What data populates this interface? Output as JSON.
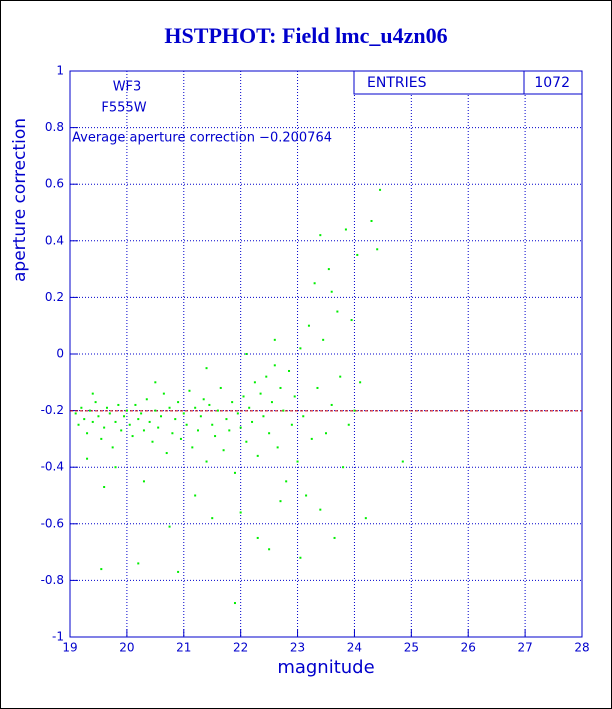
{
  "chart_data": {
    "type": "scatter",
    "title": "HSTPHOT: Field lmc_u4zn06",
    "xlabel": "magnitude",
    "ylabel": "aperture correction",
    "annotations": [
      "WF3",
      "F555W"
    ],
    "average": {
      "value": -0.200764,
      "label": "Average aperture correction −0.200764",
      "color": "#cc0000"
    },
    "stats": {
      "label": "ENTRIES",
      "value": 1072
    },
    "color": "#00ee00",
    "grid": true,
    "xlim": [
      19,
      28
    ],
    "ylim": [
      -1,
      1
    ],
    "xticks": [
      19,
      20,
      21,
      22,
      23,
      24,
      25,
      26,
      27,
      28
    ],
    "yticks": [
      -1,
      -0.8,
      -0.6,
      -0.4,
      -0.2,
      0,
      0.2,
      0.4,
      0.6,
      0.8,
      1
    ],
    "x": [
      19.1,
      19.15,
      19.2,
      19.25,
      19.3,
      19.35,
      19.4,
      19.45,
      19.5,
      19.55,
      19.6,
      19.65,
      19.7,
      19.75,
      19.8,
      19.85,
      19.9,
      19.95,
      20.0,
      20.05,
      20.1,
      20.15,
      20.2,
      20.25,
      20.3,
      20.35,
      20.4,
      20.45,
      20.5,
      20.55,
      20.6,
      20.65,
      20.7,
      20.75,
      20.8,
      20.85,
      20.9,
      20.95,
      21.0,
      21.05,
      21.1,
      21.15,
      21.2,
      21.25,
      21.3,
      21.35,
      21.4,
      21.45,
      21.5,
      21.55,
      21.6,
      21.65,
      21.7,
      21.75,
      21.8,
      21.85,
      21.9,
      21.95,
      22.0,
      22.05,
      22.1,
      22.15,
      22.2,
      22.25,
      22.3,
      22.35,
      22.4,
      22.45,
      22.5,
      22.55,
      22.6,
      22.65,
      22.7,
      22.75,
      22.8,
      22.85,
      22.9,
      22.95,
      23.0,
      23.05,
      23.1,
      23.15,
      23.2,
      23.25,
      23.3,
      23.35,
      23.4,
      23.45,
      23.5,
      23.55,
      23.6,
      23.65,
      23.7,
      23.75,
      23.8,
      23.85,
      23.9,
      23.95,
      24.05,
      24.1,
      24.2,
      24.3,
      24.4,
      24.45,
      24.85,
      19.55,
      19.6,
      20.2,
      20.75,
      20.9,
      21.5,
      21.9,
      22.3,
      22.5,
      22.0,
      21.2,
      20.3,
      19.8,
      22.7,
      23.05,
      23.4,
      22.6,
      22.1,
      21.4,
      20.5,
      19.4,
      19.3,
      23.6,
      24.0
    ],
    "values": [
      -0.21,
      -0.25,
      -0.19,
      -0.23,
      -0.28,
      -0.2,
      -0.24,
      -0.17,
      -0.22,
      -0.3,
      -0.26,
      -0.19,
      -0.21,
      -0.33,
      -0.24,
      -0.18,
      -0.27,
      -0.22,
      -0.2,
      -0.25,
      -0.29,
      -0.18,
      -0.23,
      -0.21,
      -0.27,
      -0.16,
      -0.24,
      -0.31,
      -0.2,
      -0.26,
      -0.22,
      -0.14,
      -0.35,
      -0.19,
      -0.28,
      -0.23,
      -0.17,
      -0.3,
      -0.21,
      -0.25,
      -0.13,
      -0.33,
      -0.19,
      -0.27,
      -0.22,
      -0.16,
      -0.38,
      -0.18,
      -0.25,
      -0.29,
      -0.2,
      -0.12,
      -0.34,
      -0.23,
      -0.27,
      -0.17,
      -0.42,
      -0.21,
      -0.26,
      -0.15,
      -0.31,
      -0.19,
      -0.24,
      -0.1,
      -0.36,
      -0.14,
      -0.22,
      -0.08,
      -0.28,
      -0.17,
      -0.04,
      -0.33,
      -0.12,
      -0.2,
      -0.45,
      -0.06,
      -0.25,
      -0.15,
      -0.38,
      0.02,
      -0.22,
      -0.5,
      0.1,
      -0.3,
      0.25,
      -0.12,
      -0.55,
      0.05,
      -0.28,
      0.3,
      -0.18,
      -0.65,
      0.15,
      -0.08,
      -0.4,
      0.44,
      -0.25,
      0.12,
      0.35,
      -0.1,
      -0.58,
      0.47,
      0.37,
      0.58,
      -0.38,
      -0.76,
      -0.47,
      -0.74,
      -0.61,
      -0.77,
      -0.58,
      -0.88,
      -0.65,
      -0.69,
      -0.56,
      -0.5,
      -0.45,
      -0.4,
      -0.52,
      -0.72,
      0.42,
      0.05,
      0.0,
      -0.05,
      -0.1,
      -0.14,
      -0.37,
      0.22,
      -0.2
    ]
  }
}
